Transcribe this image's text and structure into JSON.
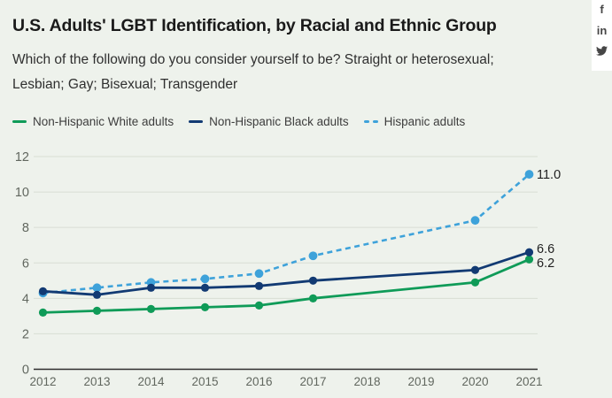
{
  "header": {
    "title": "U.S. Adults' LGBT Identification, by Racial and Ethnic Group",
    "subtitle": "Which of the following do you consider yourself to be? Straight or heterosexual; Lesbian; Gay; Bisexual; Transgender"
  },
  "share": {
    "facebook_glyph": "f",
    "linkedin_glyph": "in",
    "icons": [
      "facebook-icon",
      "linkedin-icon",
      "twitter-icon"
    ]
  },
  "chart_data": {
    "type": "line",
    "x": [
      2012,
      2013,
      2014,
      2015,
      2016,
      2017,
      2018,
      2019,
      2020,
      2021
    ],
    "series": [
      {
        "name": "Non-Hispanic White adults",
        "color": "#0f9b58",
        "style": "solid",
        "values": [
          3.2,
          3.3,
          3.4,
          3.5,
          3.6,
          4.0,
          null,
          null,
          4.9,
          6.2
        ],
        "end_label": "6.2"
      },
      {
        "name": "Non-Hispanic Black adults",
        "color": "#123a73",
        "style": "solid",
        "values": [
          4.4,
          4.2,
          4.6,
          4.6,
          4.7,
          5.0,
          null,
          null,
          5.6,
          6.6
        ],
        "end_label": "6.6"
      },
      {
        "name": "Hispanic adults",
        "color": "#3ea2da",
        "style": "dashed",
        "values": [
          4.3,
          4.6,
          4.9,
          5.1,
          5.4,
          6.4,
          null,
          null,
          8.4,
          11.0
        ],
        "end_label": "11.0"
      }
    ],
    "ylim": [
      0,
      12
    ],
    "yticks": [
      0,
      2,
      4,
      6,
      8,
      10,
      12
    ],
    "grid": true,
    "legend_position": "top",
    "axis_text_color": "#61675f",
    "grid_color": "#d8ddd4",
    "baseline_color": "#2d2d2d",
    "end_label_color": "#1f1f1f"
  }
}
